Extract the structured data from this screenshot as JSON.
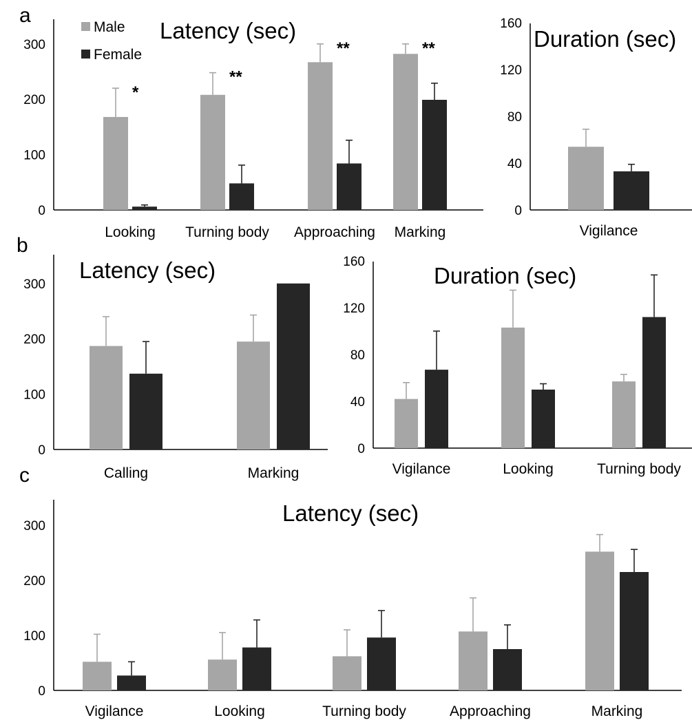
{
  "colors": {
    "male": "#a6a6a6",
    "female": "#262626",
    "axis": "#000000"
  },
  "legend": [
    {
      "name": "Male",
      "color": "#a6a6a6"
    },
    {
      "name": "Female",
      "color": "#262626"
    }
  ],
  "panel_letters": [
    "a",
    "b",
    "c"
  ],
  "chart_data": [
    {
      "id": "a_latency",
      "panel": "a",
      "type": "bar",
      "title": "Latency (sec)",
      "categories": [
        "Looking",
        "Turning body",
        "Approaching",
        "Marking"
      ],
      "series": [
        {
          "name": "Male",
          "values": [
            168,
            208,
            267,
            282
          ],
          "errors": [
            52,
            40,
            33,
            18
          ]
        },
        {
          "name": "Female",
          "values": [
            6,
            48,
            84,
            199
          ],
          "errors": [
            3,
            33,
            42,
            30
          ]
        }
      ],
      "significance": [
        "*",
        "**",
        "**",
        "**"
      ],
      "yticks": [
        0,
        100,
        200,
        300
      ],
      "ylim": [
        0,
        350
      ],
      "legend_position": "top-left"
    },
    {
      "id": "a_duration",
      "panel": "a",
      "type": "bar",
      "title": "Duration (sec)",
      "categories": [
        "Vigilance"
      ],
      "series": [
        {
          "name": "Male",
          "values": [
            54
          ],
          "errors": [
            15
          ]
        },
        {
          "name": "Female",
          "values": [
            33
          ],
          "errors": [
            6
          ]
        }
      ],
      "yticks": [
        0,
        40,
        80,
        120,
        160
      ],
      "ylim": [
        0,
        160
      ]
    },
    {
      "id": "b_latency",
      "panel": "b",
      "type": "bar",
      "title": "Latency (sec)",
      "categories": [
        "Calling",
        "Marking"
      ],
      "series": [
        {
          "name": "Male",
          "values": [
            187,
            195
          ],
          "errors": [
            53,
            48
          ]
        },
        {
          "name": "Female",
          "values": [
            137,
            300
          ],
          "errors": [
            58,
            0
          ]
        }
      ],
      "yticks": [
        0,
        100,
        200,
        300
      ],
      "ylim": [
        0,
        350
      ]
    },
    {
      "id": "b_duration",
      "panel": "b",
      "type": "bar",
      "title": "Duration (sec)",
      "categories": [
        "Vigilance",
        "Looking",
        "Turning body"
      ],
      "series": [
        {
          "name": "Male",
          "values": [
            42,
            103,
            57
          ],
          "errors": [
            14,
            32,
            6
          ]
        },
        {
          "name": "Female",
          "values": [
            67,
            50,
            112
          ],
          "errors": [
            33,
            5,
            36
          ]
        }
      ],
      "yticks": [
        0,
        40,
        80,
        120,
        160
      ],
      "ylim": [
        0,
        160
      ]
    },
    {
      "id": "c_latency",
      "panel": "c",
      "type": "bar",
      "title": "Latency (sec)",
      "categories": [
        "Vigilance",
        "Looking",
        "Turning body",
        "Approaching",
        "Marking"
      ],
      "series": [
        {
          "name": "Male",
          "values": [
            52,
            56,
            62,
            107,
            252
          ],
          "errors": [
            50,
            49,
            48,
            61,
            31
          ]
        },
        {
          "name": "Female",
          "values": [
            27,
            78,
            96,
            75,
            215
          ],
          "errors": [
            25,
            50,
            49,
            44,
            41
          ]
        }
      ],
      "yticks": [
        0,
        100,
        200,
        300
      ],
      "ylim": [
        0,
        350
      ]
    }
  ]
}
